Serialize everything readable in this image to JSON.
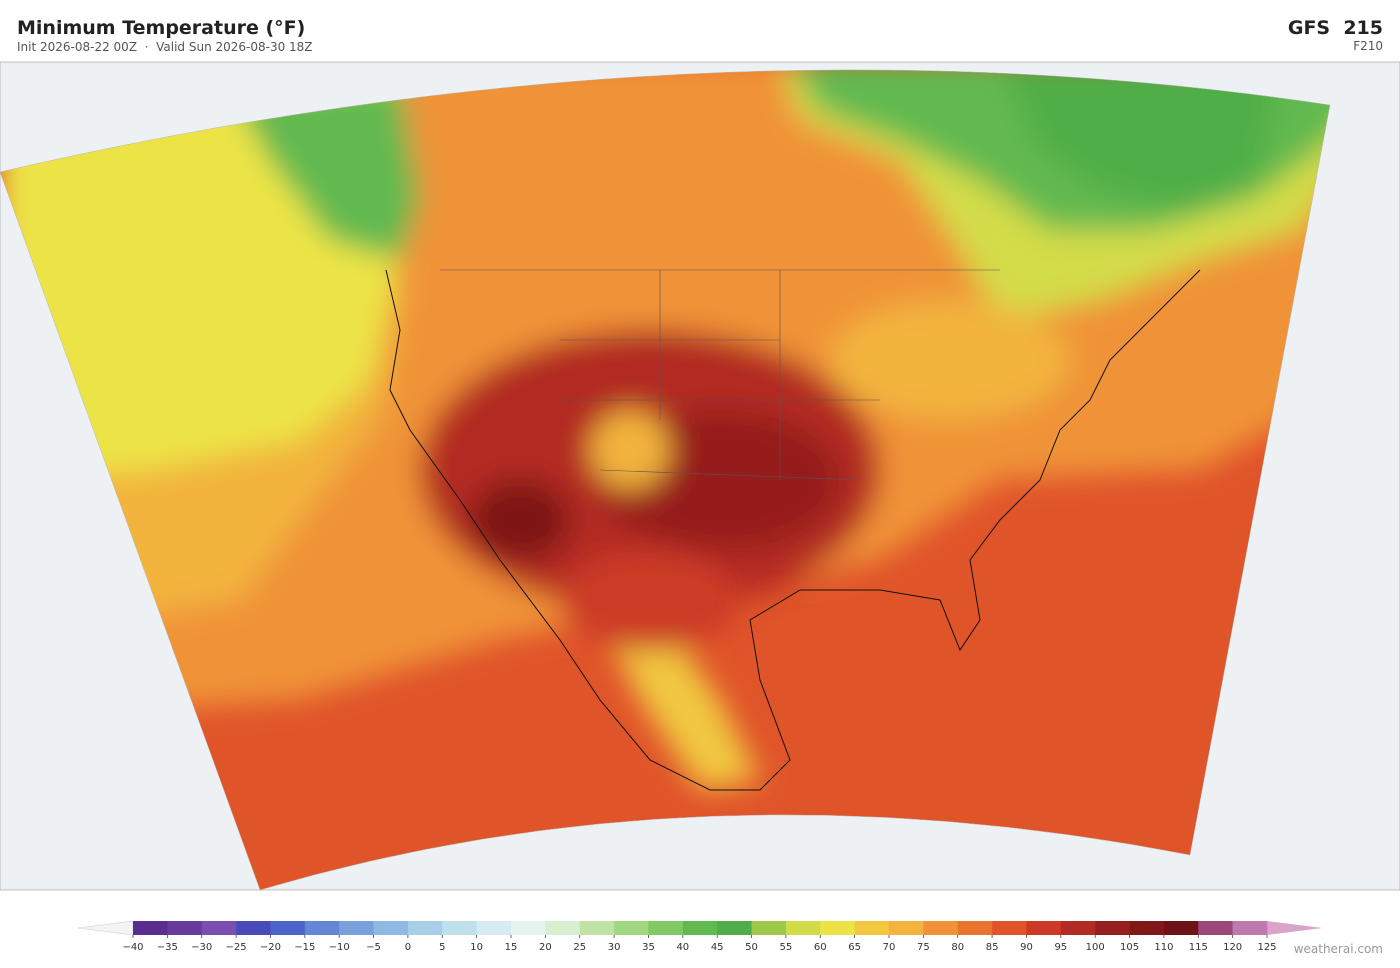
{
  "header": {
    "title": "Minimum Temperature  (°F)",
    "subtitle": "Init 2026-08-22 00Z  ·  Valid Sun 2026-08-30 18Z",
    "model": "GFS  215",
    "forecast_hour": "F210"
  },
  "colorbar": {
    "ticks": [
      {
        "value": -40,
        "label": "−40"
      },
      {
        "value": -35,
        "label": "−35"
      },
      {
        "value": -30,
        "label": "−30"
      },
      {
        "value": -25,
        "label": "−25"
      },
      {
        "value": -20,
        "label": "−20"
      },
      {
        "value": -15,
        "label": "−15"
      },
      {
        "value": -10,
        "label": "−10"
      },
      {
        "value": -5,
        "label": "−5"
      },
      0,
      5,
      10,
      15,
      20,
      25,
      30,
      35,
      40,
      45,
      50,
      55,
      60,
      65,
      70,
      75,
      80,
      85,
      90,
      95,
      100,
      105,
      110,
      115,
      120,
      125
    ],
    "colors": [
      "#5b2d91",
      "#6a3b9e",
      "#7a4fb0",
      "#4a4ab8",
      "#4e63c9",
      "#6585d6",
      "#7aa0dc",
      "#8fb9e2",
      "#a8cfe8",
      "#c0e0ee",
      "#d4ecf2",
      "#e5f4f0",
      "#d7efcf",
      "#bfe3a5",
      "#a2d680",
      "#82c863",
      "#62b94f",
      "#4fae47",
      "#9ec94a",
      "#d3dc48",
      "#ece446",
      "#f1c840",
      "#f2b43e",
      "#f09338",
      "#e87430",
      "#e0542a",
      "#cc3a27",
      "#b22b24",
      "#961f1f",
      "#7e1819",
      "#6e1218",
      "#9a4a7a",
      "#bf78b0"
    ],
    "under_color": "#f4f4f6",
    "over_color": "#d8a4cc"
  },
  "footer": {
    "watermark": "weatherai.com"
  }
}
